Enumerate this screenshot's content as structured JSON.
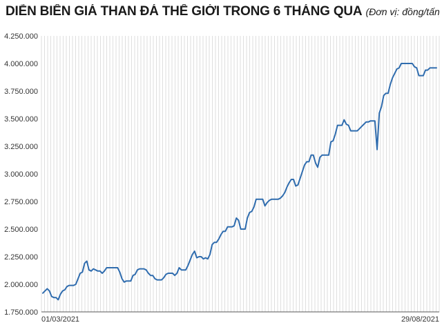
{
  "header": {
    "title": "DIỄN BIẾN GIÁ THAN ĐÁ THẾ GIỚI TRONG 6 THÁNG QUA",
    "unit": "(Đơn vị: đồng/tấn)"
  },
  "chart_data": {
    "type": "line",
    "title": "DIỄN BIẾN GIÁ THAN ĐÁ THẾ GIỚI TRONG 6 THÁNG QUA",
    "subtitle": "(Đơn vị: đồng/tấn)",
    "xlabel": "",
    "ylabel": "",
    "ylim": [
      1750000,
      4250000
    ],
    "yticks": [
      1750000,
      2000000,
      2250000,
      2500000,
      2750000,
      3000000,
      3250000,
      3500000,
      3750000,
      4000000,
      4250000
    ],
    "ytick_labels": [
      "1.750.000",
      "2.000.000",
      "2.250.000",
      "2.500.000",
      "2.750.000",
      "3.000.000",
      "3.250.000",
      "3.500.000",
      "3.750.000",
      "4.000.000",
      "4.250.000"
    ],
    "xtick_labels": [
      "01/03/2021",
      "29/08/2021"
    ],
    "grid": "vertical",
    "line_color": "#2f6cae",
    "grid_color": "#c8c8c8",
    "series": [
      {
        "values": [
          1920000,
          1940000,
          1960000,
          1940000,
          1890000,
          1880000,
          1880000,
          1860000,
          1910000,
          1940000,
          1950000,
          1980000,
          1990000,
          1990000,
          1990000,
          2000000,
          2050000,
          2100000,
          2110000,
          2190000,
          2210000,
          2130000,
          2120000,
          2140000,
          2130000,
          2120000,
          2120000,
          2100000,
          2120000,
          2150000,
          2150000,
          2150000,
          2150000,
          2150000,
          2150000,
          2110000,
          2050000,
          2020000,
          2030000,
          2030000,
          2030000,
          2080000,
          2090000,
          2130000,
          2140000,
          2140000,
          2140000,
          2130000,
          2100000,
          2080000,
          2080000,
          2050000,
          2040000,
          2040000,
          2040000,
          2060000,
          2090000,
          2100000,
          2100000,
          2100000,
          2080000,
          2100000,
          2150000,
          2130000,
          2130000,
          2130000,
          2170000,
          2220000,
          2270000,
          2300000,
          2240000,
          2250000,
          2250000,
          2230000,
          2240000,
          2230000,
          2270000,
          2360000,
          2380000,
          2380000,
          2410000,
          2450000,
          2480000,
          2480000,
          2520000,
          2520000,
          2520000,
          2530000,
          2600000,
          2580000,
          2500000,
          2500000,
          2500000,
          2600000,
          2650000,
          2660000,
          2700000,
          2770000,
          2770000,
          2770000,
          2770000,
          2710000,
          2740000,
          2760000,
          2770000,
          2770000,
          2770000,
          2770000,
          2780000,
          2800000,
          2830000,
          2880000,
          2920000,
          2950000,
          2950000,
          2890000,
          2900000,
          2960000,
          3020000,
          3080000,
          3110000,
          3110000,
          3170000,
          3170000,
          3100000,
          3060000,
          3150000,
          3170000,
          3170000,
          3170000,
          3170000,
          3290000,
          3300000,
          3360000,
          3440000,
          3440000,
          3440000,
          3490000,
          3450000,
          3440000,
          3390000,
          3390000,
          3390000,
          3390000,
          3410000,
          3430000,
          3450000,
          3470000,
          3470000,
          3480000,
          3480000,
          3480000,
          3220000,
          3550000,
          3610000,
          3710000,
          3730000,
          3730000,
          3810000,
          3870000,
          3910000,
          3950000,
          3960000,
          4000000,
          4000000,
          4000000,
          4000000,
          4000000,
          4000000,
          3970000,
          3960000,
          3890000,
          3890000,
          3890000,
          3940000,
          3940000,
          3960000,
          3960000,
          3960000,
          3960000
        ]
      }
    ]
  }
}
